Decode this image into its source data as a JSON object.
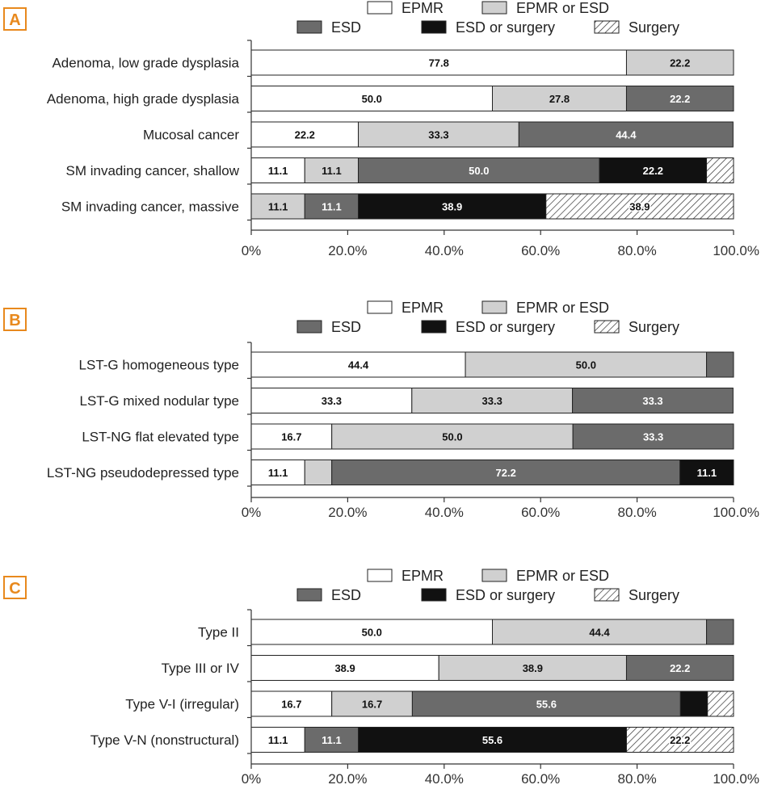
{
  "legend": [
    {
      "key": "EPMR",
      "label": "EPMR",
      "color": "#ffffff"
    },
    {
      "key": "EPMR_or_ESD",
      "label": "EPMR or ESD",
      "color": "#d0d0d0"
    },
    {
      "key": "ESD",
      "label": "ESD",
      "color": "#6b6b6b"
    },
    {
      "key": "ESD_or_surgery",
      "label": "ESD or surgery",
      "color": "#111111"
    },
    {
      "key": "Surgery",
      "label": "Surgery",
      "color": "hatched"
    }
  ],
  "colors": {
    "panel_letter": "#e8891d",
    "axis": "#333333"
  },
  "chart_data": [
    {
      "type": "bar",
      "panel": "A",
      "orientation": "horizontal",
      "stacked": true,
      "xlim": [
        0,
        100
      ],
      "ticks": [
        "0%",
        "20.0%",
        "40.0%",
        "60.0%",
        "80.0%",
        "100.0%"
      ],
      "categories": [
        "Adenoma, low grade dysplasia",
        "Adenoma, high grade dysplasia",
        "Mucosal cancer",
        "SM invading cancer, shallow",
        "SM invading cancer, massive"
      ],
      "series": [
        {
          "name": "EPMR",
          "values": [
            77.8,
            50.0,
            22.2,
            11.1,
            0
          ]
        },
        {
          "name": "EPMR or ESD",
          "values": [
            22.2,
            27.8,
            33.3,
            11.1,
            11.1
          ]
        },
        {
          "name": "ESD",
          "values": [
            0,
            22.2,
            44.4,
            50.0,
            11.1
          ]
        },
        {
          "name": "ESD or surgery",
          "values": [
            0,
            0,
            0,
            22.2,
            38.9
          ]
        },
        {
          "name": "Surgery",
          "values": [
            0,
            0,
            0,
            5.6,
            38.9
          ]
        }
      ],
      "labels": [
        [
          "77.8",
          "22.2",
          "",
          "",
          ""
        ],
        [
          "50.0",
          "27.8",
          "22.2",
          "",
          ""
        ],
        [
          "22.2",
          "33.3",
          "44.4",
          "",
          ""
        ],
        [
          "11.1",
          "11.1",
          "50.0",
          "22.2",
          ""
        ],
        [
          "",
          "11.1",
          "11.1",
          "38.9",
          "38.9"
        ]
      ],
      "legend_position": "top-right"
    },
    {
      "type": "bar",
      "panel": "B",
      "orientation": "horizontal",
      "stacked": true,
      "xlim": [
        0,
        100
      ],
      "ticks": [
        "0%",
        "20.0%",
        "40.0%",
        "60.0%",
        "80.0%",
        "100.0%"
      ],
      "categories": [
        "LST-G homogeneous type",
        "LST-G mixed nodular type",
        "LST-NG flat elevated type",
        "LST-NG pseudodepressed type"
      ],
      "series": [
        {
          "name": "EPMR",
          "values": [
            44.4,
            33.3,
            16.7,
            11.1
          ]
        },
        {
          "name": "EPMR or ESD",
          "values": [
            50.0,
            33.3,
            50.0,
            5.6
          ]
        },
        {
          "name": "ESD",
          "values": [
            5.6,
            33.3,
            33.3,
            72.2
          ]
        },
        {
          "name": "ESD or surgery",
          "values": [
            0,
            0,
            0,
            11.1
          ]
        },
        {
          "name": "Surgery",
          "values": [
            0,
            0,
            0,
            0
          ]
        }
      ],
      "labels": [
        [
          "44.4",
          "50.0",
          "",
          "",
          ""
        ],
        [
          "33.3",
          "33.3",
          "33.3",
          "",
          ""
        ],
        [
          "16.7",
          "50.0",
          "33.3",
          "",
          ""
        ],
        [
          "11.1",
          "",
          "72.2",
          "11.1",
          ""
        ]
      ],
      "legend_position": "top-right"
    },
    {
      "type": "bar",
      "panel": "C",
      "orientation": "horizontal",
      "stacked": true,
      "xlim": [
        0,
        100
      ],
      "ticks": [
        "0%",
        "20.0%",
        "40.0%",
        "60.0%",
        "80.0%",
        "100.0%"
      ],
      "categories": [
        "Type II",
        "Type III or IV",
        "Type V-I (irregular)",
        "Type V-N (nonstructural)"
      ],
      "series": [
        {
          "name": "EPMR",
          "values": [
            50.0,
            38.9,
            16.7,
            11.1
          ]
        },
        {
          "name": "EPMR or ESD",
          "values": [
            44.4,
            38.9,
            16.7,
            0
          ]
        },
        {
          "name": "ESD",
          "values": [
            5.6,
            22.2,
            55.6,
            11.1
          ]
        },
        {
          "name": "ESD or surgery",
          "values": [
            0,
            0,
            5.6,
            55.6
          ]
        },
        {
          "name": "Surgery",
          "values": [
            0,
            0,
            5.6,
            22.2
          ]
        }
      ],
      "labels": [
        [
          "50.0",
          "44.4",
          "",
          "",
          ""
        ],
        [
          "38.9",
          "38.9",
          "22.2",
          "",
          ""
        ],
        [
          "16.7",
          "16.7",
          "55.6",
          "",
          ""
        ],
        [
          "11.1",
          "",
          "11.1",
          "55.6",
          "22.2"
        ]
      ],
      "legend_position": "top-right"
    }
  ]
}
